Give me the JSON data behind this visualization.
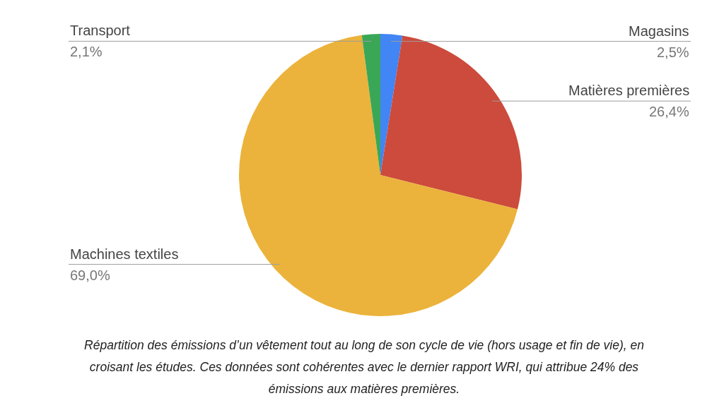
{
  "chart_data": {
    "type": "pie",
    "categories": [
      "Magasins",
      "Matières premières",
      "Machines textiles",
      "Transport"
    ],
    "values": [
      2.5,
      26.4,
      69.0,
      2.1
    ],
    "value_labels": [
      "2,5%",
      "26,4%",
      "69,0%",
      "2,1%"
    ],
    "colors": [
      "#4285f4",
      "#cc4b3c",
      "#ebb33b",
      "#3aa757"
    ],
    "legend": false,
    "annotations": [
      "Répartition des émissions d’un vêtement tout au long de son cycle de vie (hors usage et fin de vie), en croisant les études. Ces données sont cohérentes avec le dernier rapport WRI, qui attribue 24% des émissions aux matières premières."
    ]
  }
}
